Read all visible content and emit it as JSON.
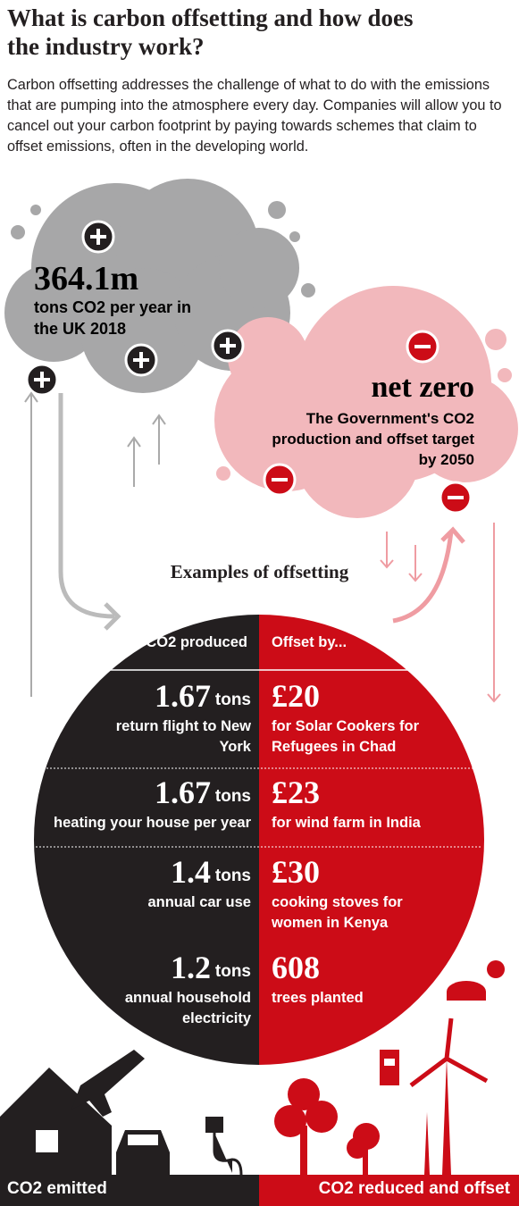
{
  "header": {
    "title": "What is carbon offsetting and how does the industry work?",
    "intro": "Carbon offsetting addresses the challenge of what to do with the emissions that are pumping into the atmosphere every day. Companies will allow you to cancel out your carbon footprint by paying towards schemes that claim to offset emissions, often in the developing world."
  },
  "uk_emissions": {
    "value": "364.1m",
    "description": "tons CO2 per year in the UK 2018"
  },
  "target": {
    "value": "net zero",
    "description": "The Government's CO2 production and offset target by 2050"
  },
  "examples": {
    "title": "Examples of offsetting",
    "columns": [
      "CO2 produced",
      "Offset by..."
    ],
    "rows": [
      {
        "produced": "1.67",
        "unit": "tons",
        "activity": "return flight to New York",
        "offset": "£20",
        "scheme": "for Solar Cookers for Refugees in Chad"
      },
      {
        "produced": "1.67",
        "unit": "tons",
        "activity": "heating your house per year",
        "offset": "£23",
        "scheme": "for wind farm in India"
      },
      {
        "produced": "1.4",
        "unit": "tons",
        "activity": "annual car use",
        "offset": "£30",
        "scheme": "cooking stoves for women in Kenya"
      },
      {
        "produced": "1.2",
        "unit": "tons",
        "activity": "annual household electricity",
        "offset": "608",
        "scheme": "trees planted"
      }
    ]
  },
  "footer": {
    "left": "CO2 emitted",
    "right": "CO2 reduced and offset"
  }
}
